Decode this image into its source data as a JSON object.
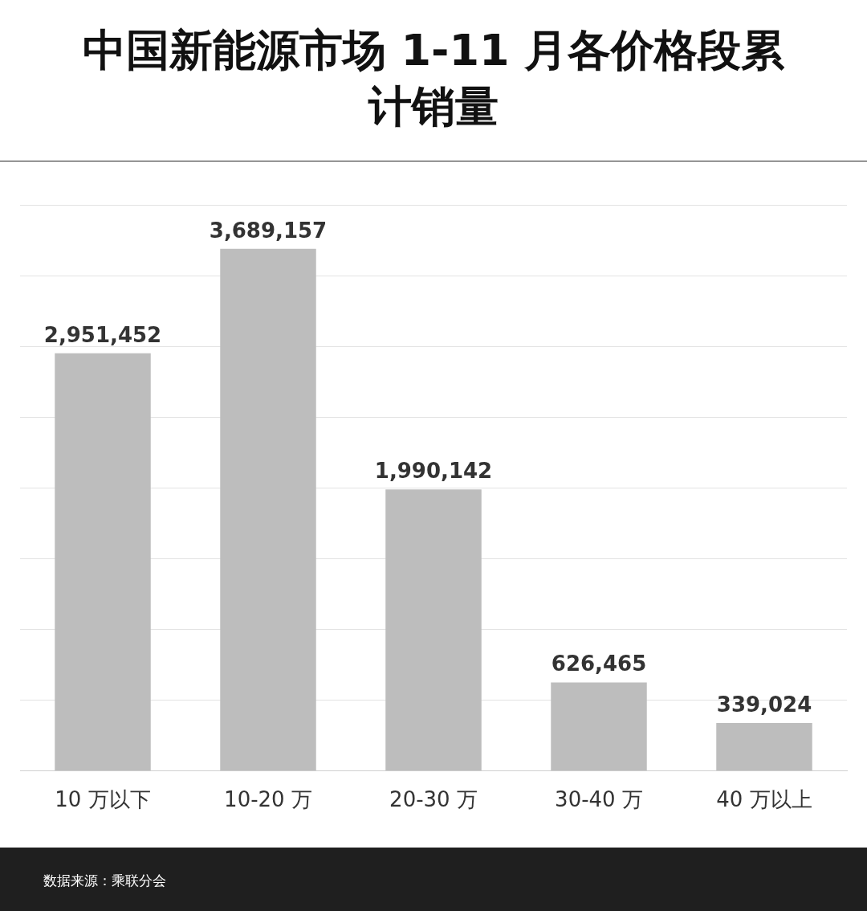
{
  "chart_data": {
    "type": "bar",
    "title": "中国新能源市场 1-11 月各价格段累计销量",
    "categories": [
      "10 万以下",
      "10-20 万",
      "20-30 万",
      "30-40 万",
      "40 万以上"
    ],
    "values": [
      2951452,
      3689157,
      1990142,
      626465,
      339024
    ],
    "color": "#bdbdbd",
    "value_labels": [
      "2,951,452",
      "3,689,157",
      "1,990,142",
      "626,465",
      "339,024"
    ],
    "grid": "y",
    "tick_labels": "x",
    "annotations": [
      "数据来源：乘联分会"
    ]
  }
}
